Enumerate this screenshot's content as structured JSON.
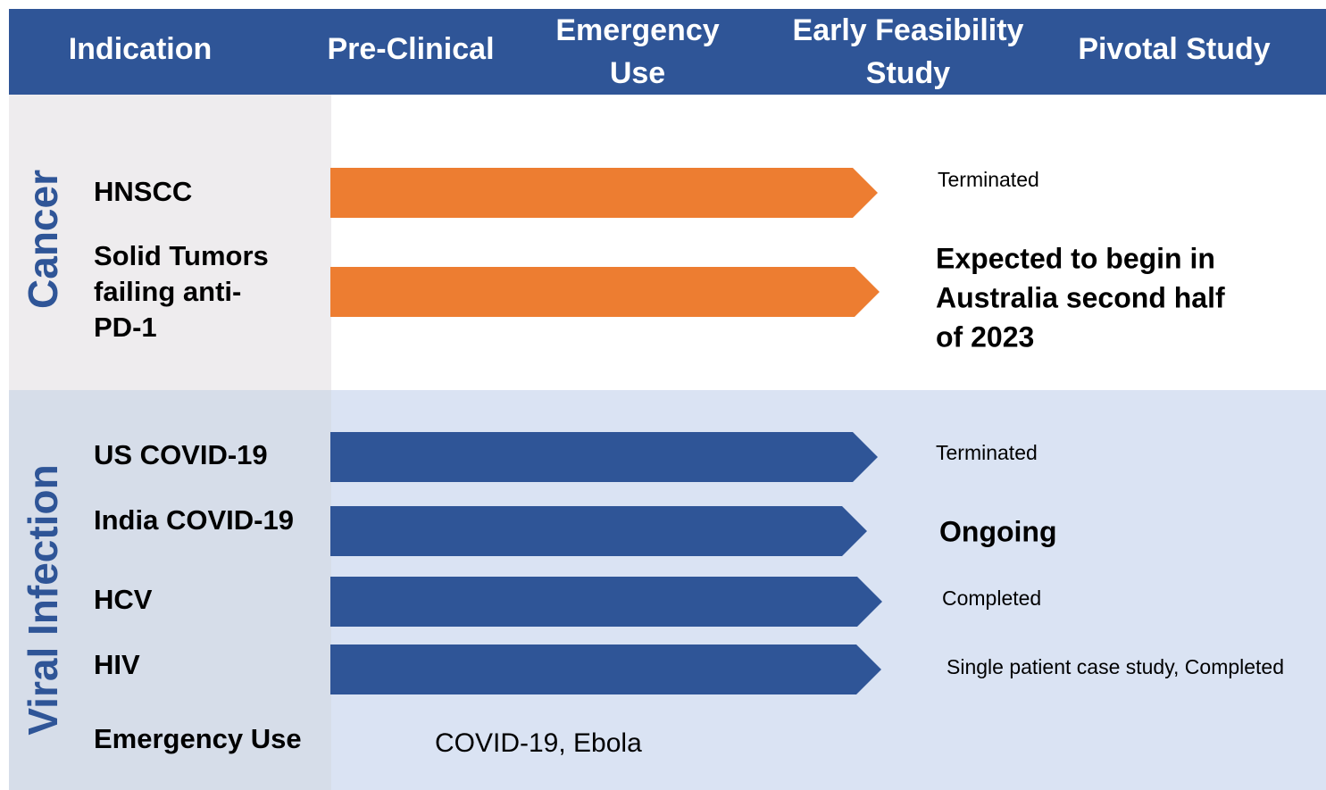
{
  "header": {
    "columns": [
      [
        "Indication"
      ],
      [
        "Pre-Clinical"
      ],
      [
        "Emergency",
        "Use"
      ],
      [
        "Early Feasibility",
        "Study"
      ],
      [
        "Pivotal Study"
      ]
    ]
  },
  "groups": [
    {
      "name": "Cancer",
      "rows": [
        {
          "label": [
            "HNSCC"
          ],
          "status": [
            "Terminated"
          ]
        },
        {
          "label": [
            "Solid Tumors",
            "failing anti-",
            "PD-1"
          ],
          "status": [
            "Expected to begin in",
            "Australia second half",
            "of 2023"
          ]
        }
      ]
    },
    {
      "name": "Viral Infection",
      "rows": [
        {
          "label": [
            "US COVID-19"
          ],
          "status": [
            "Terminated"
          ]
        },
        {
          "label": [
            "India COVID-19"
          ],
          "status": [
            "Ongoing"
          ]
        },
        {
          "label": [
            "HCV"
          ],
          "status": [
            "Completed"
          ]
        },
        {
          "label": [
            "HIV"
          ],
          "status": [
            "Single patient case study, Completed"
          ]
        },
        {
          "label": [
            "Emergency Use"
          ],
          "note": "COVID-19, Ebola"
        }
      ]
    }
  ]
}
